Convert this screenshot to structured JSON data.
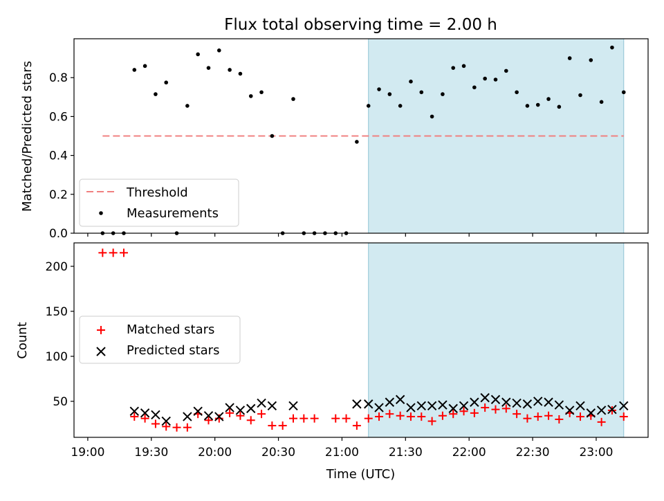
{
  "chart_data": {
    "title": "Flux total observing time = 2.00 h",
    "xlabel": "Time (UTC)",
    "x_units": "minutes after 19:00",
    "xlim": [
      -6.5,
      264.5
    ],
    "x_ticks": [
      {
        "label": "19:00",
        "value": 0
      },
      {
        "label": "19:30",
        "value": 30
      },
      {
        "label": "20:00",
        "value": 60
      },
      {
        "label": "20:30",
        "value": 90
      },
      {
        "label": "21:00",
        "value": 120
      },
      {
        "label": "21:30",
        "value": 150
      },
      {
        "label": "22:00",
        "value": 180
      },
      {
        "label": "22:30",
        "value": 210
      },
      {
        "label": "23:00",
        "value": 240
      }
    ],
    "shaded_span": {
      "start": 132.5,
      "end": 253,
      "color": "#add8e6"
    },
    "top_panel": {
      "type": "scatter",
      "ylabel": "Matched/Predicted stars",
      "ylim": [
        0,
        1.0
      ],
      "y_ticks": [
        "0.0",
        "0.2",
        "0.4",
        "0.6",
        "0.8"
      ],
      "threshold": {
        "name": "Threshold",
        "value": 0.5,
        "x_start": 7,
        "x_end": 253,
        "color": "#f08080"
      },
      "measurements": {
        "name": "Measurements",
        "x": [
          7,
          12,
          17,
          22,
          27,
          32,
          37,
          42,
          47,
          52,
          57,
          62,
          67,
          72,
          77,
          82,
          87,
          92,
          97,
          102,
          107,
          112,
          117,
          122,
          127,
          132.5,
          137.5,
          142.5,
          147.5,
          152.5,
          157.5,
          162.5,
          167.5,
          172.5,
          177.5,
          182.5,
          187.5,
          192.5,
          197.5,
          202.5,
          207.5,
          212.5,
          217.5,
          222.5,
          227.5,
          232.5,
          237.5,
          242.5,
          247.5,
          253
        ],
        "y": [
          0,
          0,
          0,
          0.84,
          0.86,
          0.715,
          0.775,
          0,
          0.655,
          0.92,
          0.85,
          0.94,
          0.84,
          0.82,
          0.705,
          0.725,
          0.5,
          0,
          0.69,
          0,
          0,
          0,
          0,
          0,
          0.47,
          0.655,
          0.74,
          0.715,
          0.655,
          0.78,
          0.725,
          0.6,
          0.715,
          0.85,
          0.86,
          0.75,
          0.795,
          0.79,
          0.835,
          0.725,
          0.655,
          0.66,
          0.69,
          0.65,
          0.9,
          0.71,
          0.89,
          0.675,
          0.955,
          0.725
        ]
      },
      "legend": [
        "Threshold",
        "Measurements"
      ]
    },
    "bottom_panel": {
      "type": "scatter",
      "ylabel": "Count",
      "ylim": [
        10,
        226
      ],
      "y_ticks": [
        "50",
        "100",
        "150",
        "200"
      ],
      "series": [
        {
          "name": "Matched stars",
          "marker": "+",
          "color": "#ff0000",
          "x": [
            7,
            12,
            17,
            22,
            27,
            32,
            37,
            42,
            47,
            52,
            57,
            62,
            67,
            72,
            77,
            82,
            87,
            92,
            97,
            102,
            107,
            117,
            122,
            127,
            132.5,
            137.5,
            142.5,
            147.5,
            152.5,
            157.5,
            162.5,
            167.5,
            172.5,
            177.5,
            182.5,
            187.5,
            192.5,
            197.5,
            202.5,
            207.5,
            212.5,
            217.5,
            222.5,
            227.5,
            232.5,
            237.5,
            242.5,
            247.5,
            253
          ],
          "y": [
            215,
            215,
            215,
            33,
            31,
            25,
            22,
            21,
            21,
            36,
            29,
            31,
            37,
            34,
            29,
            36,
            23,
            23,
            31,
            31,
            31,
            31,
            31,
            23,
            31,
            33,
            36,
            34,
            33,
            33,
            28,
            34,
            36,
            39,
            37,
            43,
            41,
            42,
            36,
            31,
            33,
            34,
            30,
            37,
            33,
            34,
            27,
            40,
            33
          ]
        },
        {
          "name": "Predicted stars",
          "marker": "x",
          "color": "#000000",
          "x": [
            22,
            27,
            32,
            37,
            47,
            52,
            57,
            62,
            67,
            72,
            77,
            82,
            87,
            97,
            127,
            132.5,
            137.5,
            142.5,
            147.5,
            152.5,
            157.5,
            162.5,
            167.5,
            172.5,
            177.5,
            182.5,
            187.5,
            192.5,
            197.5,
            202.5,
            207.5,
            212.5,
            217.5,
            222.5,
            227.5,
            232.5,
            237.5,
            242.5,
            247.5,
            253
          ],
          "y": [
            39,
            37,
            35,
            28,
            33,
            39,
            34,
            33,
            43,
            40,
            42,
            48,
            45,
            45,
            47,
            47,
            43,
            49,
            52,
            43,
            45,
            45,
            46,
            42,
            45,
            49,
            54,
            52,
            49,
            48,
            47,
            50,
            49,
            46,
            40,
            45,
            37,
            40,
            41,
            45
          ]
        }
      ],
      "legend": [
        "Matched stars",
        "Predicted stars"
      ]
    }
  }
}
